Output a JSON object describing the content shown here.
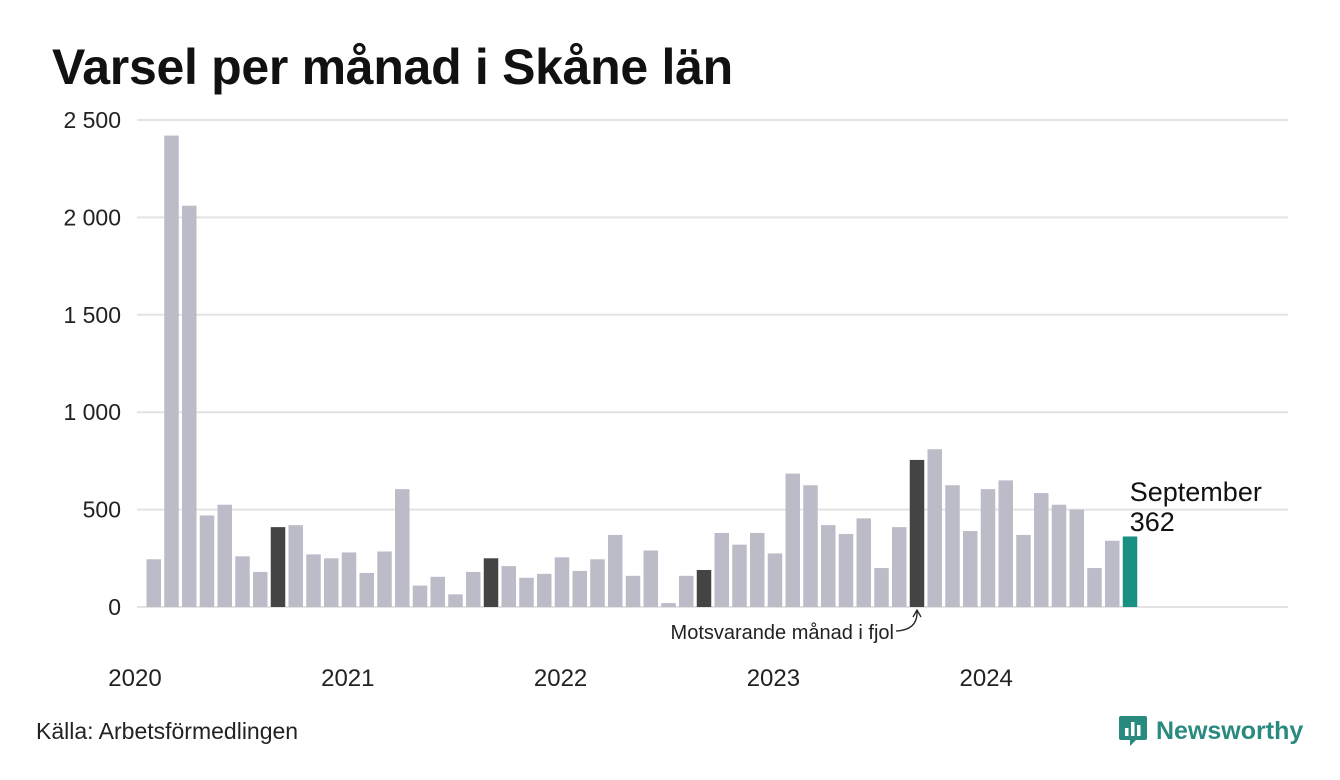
{
  "title": "Varsel per månad i Skåne län",
  "source": "Källa: Arbetsförmedlingen",
  "brand": {
    "name": "Newsworthy",
    "icon": "newsworthy-logo-icon"
  },
  "colors": {
    "bar": "#bcbbc8",
    "highlight": "#444444",
    "current": "#1a8f84",
    "grid": "#e3e3e3",
    "text": "#222222",
    "brand": "#2a8a80"
  },
  "chart_data": {
    "type": "bar",
    "title": "Varsel per månad i Skåne län",
    "xlabel": "",
    "ylabel": "",
    "ylim": [
      0,
      2500
    ],
    "yticks": [
      0,
      500,
      1000,
      1500,
      2000,
      2500
    ],
    "ytick_labels": [
      "0",
      "500",
      "1 000",
      "1 500",
      "2 000",
      "2 500"
    ],
    "grid": true,
    "x_start": "2020-01",
    "xtick_labels": [
      "2020",
      "2021",
      "2022",
      "2023",
      "2024"
    ],
    "values": [
      245,
      2420,
      2060,
      470,
      525,
      260,
      180,
      410,
      420,
      270,
      250,
      280,
      175,
      285,
      605,
      110,
      155,
      65,
      180,
      250,
      210,
      150,
      170,
      255,
      185,
      245,
      370,
      160,
      290,
      20,
      160,
      190,
      380,
      320,
      380,
      275,
      685,
      625,
      420,
      375,
      455,
      200,
      410,
      755,
      810,
      625,
      390,
      605,
      650,
      370,
      585,
      525,
      500,
      200,
      340,
      362
    ],
    "highlight_indices": [
      7,
      19,
      31,
      43
    ],
    "current_index": 55,
    "current_label": "September",
    "current_value_label": "362",
    "annotation": "Motsvarande månad i fjol"
  }
}
